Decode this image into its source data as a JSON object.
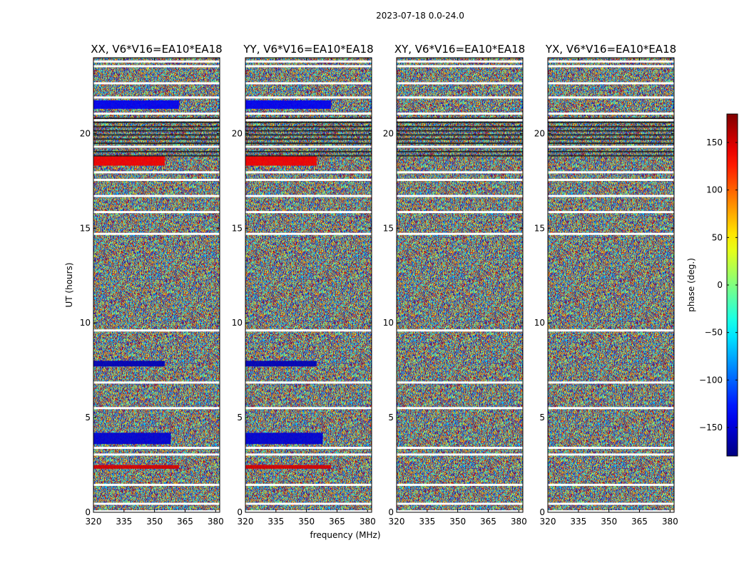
{
  "chart_data": {
    "type": "heatmap",
    "suptitle": "2023-07-18 0.0-24.0",
    "xlabel": "frequency (MHz)",
    "ylabel": "UT (hours)",
    "xlim": [
      320,
      382
    ],
    "ylim": [
      0,
      24
    ],
    "xticks": [
      320,
      335,
      350,
      365,
      380
    ],
    "yticks": [
      0,
      5,
      10,
      15,
      20
    ],
    "panels": [
      {
        "title": "XX, V6*V16=EA10*EA18"
      },
      {
        "title": "YY, V6*V16=EA10*EA18"
      },
      {
        "title": "XY, V6*V16=EA10*EA18"
      },
      {
        "title": "YX, V6*V16=EA10*EA18"
      }
    ],
    "colorbar": {
      "label": "phase (deg.)",
      "range": [
        -180,
        180
      ],
      "ticks": [
        150,
        100,
        50,
        0,
        -50,
        -100,
        -150
      ],
      "tick_labels": [
        "150",
        "100",
        "50",
        "0",
        "−50",
        "−100",
        "−150"
      ],
      "cmap": "jet"
    },
    "phase_features": [
      {
        "panels": [
          "XX",
          "YY"
        ],
        "ut_start": 21.3,
        "ut_end": 21.75,
        "phase_deg": -140,
        "freq_end": 362
      },
      {
        "panels": [
          "XX",
          "YY"
        ],
        "ut_start": 7.7,
        "ut_end": 8.0,
        "phase_deg": -160,
        "freq_end": 355
      },
      {
        "panels": [
          "XX",
          "YY"
        ],
        "ut_start": 3.6,
        "ut_end": 4.2,
        "phase_deg": -150,
        "freq_end": 358
      },
      {
        "panels": [
          "XX",
          "YY"
        ],
        "ut_start": 2.3,
        "ut_end": 2.5,
        "phase_deg": 150,
        "freq_end": 362
      },
      {
        "panels": [
          "XX",
          "YY"
        ],
        "ut_start": 18.3,
        "ut_end": 18.8,
        "phase_deg": 140,
        "freq_end": 355
      }
    ],
    "flagged_ut": [
      0.05,
      0.45,
      1.45,
      3.05,
      3.4,
      5.5,
      6.85,
      9.6,
      14.7,
      15.85,
      16.7,
      17.55,
      17.95,
      19.3,
      20.7,
      21.05,
      21.9,
      22.65,
      23.55,
      23.8
    ]
  }
}
